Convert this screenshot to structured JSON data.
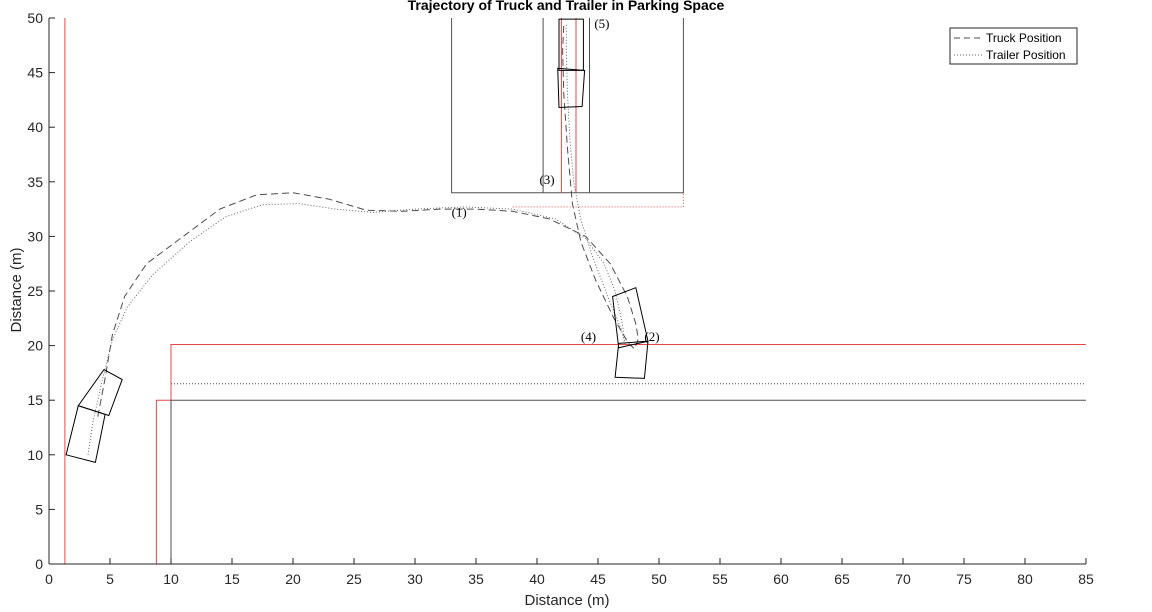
{
  "chart_data": {
    "type": "line",
    "title": "Trajectory of Truck and Trailer in Parking Space",
    "xlabel": "Distance (m)",
    "ylabel": "Distance (m)",
    "xlim": [
      0,
      85
    ],
    "ylim": [
      0,
      50
    ],
    "xticks": [
      0,
      5,
      10,
      15,
      20,
      25,
      30,
      35,
      40,
      45,
      50,
      55,
      60,
      65,
      70,
      75,
      80,
      85
    ],
    "yticks": [
      0,
      5,
      10,
      15,
      20,
      25,
      30,
      35,
      40,
      45,
      50
    ],
    "grid": false,
    "legend_position": "top-right",
    "colors": {
      "axis": "#262626",
      "boundary_red": "#e8474a",
      "boundary_gray": "#505050",
      "truck": "#4d4d4d",
      "trailer": "#666666",
      "vehicle": "#000000"
    },
    "series": [
      {
        "name": "Truck Position",
        "style": "dashed",
        "points": [
          [
            4,
            13.5
          ],
          [
            4.6,
            17
          ],
          [
            5.2,
            21
          ],
          [
            6.2,
            24.5
          ],
          [
            8,
            27.5
          ],
          [
            11,
            30
          ],
          [
            14,
            32.5
          ],
          [
            17,
            33.8
          ],
          [
            20,
            34
          ],
          [
            23,
            33.4
          ],
          [
            26,
            32.4
          ],
          [
            29,
            32.3
          ],
          [
            32,
            32.5
          ],
          [
            35,
            32.5
          ],
          [
            38,
            32.3
          ],
          [
            41,
            31.6
          ],
          [
            44,
            30
          ],
          [
            46,
            27.5
          ],
          [
            47.4,
            24.5
          ],
          [
            48.1,
            22
          ],
          [
            48.3,
            20.6
          ],
          [
            48,
            19.7
          ],
          [
            47.5,
            20.2
          ],
          [
            46.3,
            22.5
          ],
          [
            44.8,
            26
          ],
          [
            43.6,
            29.5
          ],
          [
            42.9,
            33
          ],
          [
            42.5,
            38
          ],
          [
            42.2,
            43
          ],
          [
            42.1,
            47
          ],
          [
            42.2,
            49.5
          ]
        ]
      },
      {
        "name": "Trailer Position",
        "style": "dotted",
        "points": [
          [
            3.2,
            10
          ],
          [
            3.6,
            13
          ],
          [
            4.4,
            17
          ],
          [
            5.2,
            20.5
          ],
          [
            6.4,
            23.5
          ],
          [
            8.5,
            26.5
          ],
          [
            11.5,
            29.5
          ],
          [
            14.5,
            31.8
          ],
          [
            17.5,
            32.9
          ],
          [
            20.5,
            33
          ],
          [
            23.5,
            32.5
          ],
          [
            26.5,
            32.2
          ],
          [
            30,
            32.5
          ],
          [
            34,
            32.7
          ],
          [
            38,
            32.5
          ],
          [
            41.5,
            31.6
          ],
          [
            44,
            29.8
          ],
          [
            45.5,
            27.5
          ],
          [
            46.4,
            25
          ],
          [
            47,
            22
          ],
          [
            47.2,
            20.2
          ],
          [
            46.9,
            21.5
          ],
          [
            45.8,
            24.5
          ],
          [
            44.6,
            28
          ],
          [
            43.6,
            31.5
          ],
          [
            43,
            35
          ],
          [
            42.7,
            39
          ],
          [
            42.5,
            43
          ],
          [
            42.4,
            47
          ],
          [
            42.4,
            49.5
          ]
        ]
      }
    ],
    "boundaries": [
      {
        "style": "solid-red",
        "points": [
          [
            1.3,
            0
          ],
          [
            1.3,
            50
          ]
        ]
      },
      {
        "style": "solid-red",
        "points": [
          [
            8.8,
            0
          ],
          [
            8.8,
            15
          ],
          [
            10,
            15
          ]
        ]
      },
      {
        "style": "solid-red",
        "points": [
          [
            10,
            15
          ],
          [
            10,
            20.1
          ],
          [
            85,
            20.1
          ]
        ]
      },
      {
        "style": "solid-gray",
        "points": [
          [
            10,
            0
          ],
          [
            10,
            15
          ],
          [
            85,
            15
          ]
        ]
      },
      {
        "style": "dotted-gray",
        "points": [
          [
            10,
            16.5
          ],
          [
            85,
            16.5
          ]
        ]
      },
      {
        "style": "solid-gray",
        "points": [
          [
            33,
            50
          ],
          [
            33,
            34
          ],
          [
            52,
            34
          ],
          [
            52,
            50
          ]
        ]
      },
      {
        "style": "solid-gray",
        "points": [
          [
            40.5,
            50
          ],
          [
            40.5,
            34
          ]
        ]
      },
      {
        "style": "solid-gray",
        "points": [
          [
            44.3,
            50
          ],
          [
            44.3,
            34
          ]
        ]
      },
      {
        "style": "dotted-red",
        "points": [
          [
            38,
            32.7
          ],
          [
            52,
            32.7
          ],
          [
            52,
            34
          ]
        ]
      },
      {
        "style": "solid-red",
        "points": [
          [
            42,
            50
          ],
          [
            42,
            34
          ]
        ]
      },
      {
        "style": "solid-red",
        "points": [
          [
            43.2,
            50
          ],
          [
            43.2,
            34
          ]
        ]
      }
    ],
    "vehicles": [
      [
        [
          4.5,
          17.8
        ],
        [
          6.0,
          16.9
        ],
        [
          4.9,
          13.6
        ],
        [
          2.4,
          14.5
        ]
      ],
      [
        [
          2.4,
          14.5
        ],
        [
          4.6,
          13.7
        ],
        [
          3.8,
          9.3
        ],
        [
          1.4,
          10.0
        ]
      ],
      [
        [
          46.2,
          24.5
        ],
        [
          48.1,
          25.3
        ],
        [
          49.1,
          20.4
        ],
        [
          46.7,
          19.8
        ]
      ],
      [
        [
          46.7,
          20.2
        ],
        [
          49.1,
          20.4
        ],
        [
          48.8,
          17.0
        ],
        [
          46.4,
          17.1
        ]
      ],
      [
        [
          41.8,
          49.9
        ],
        [
          43.8,
          49.9
        ],
        [
          43.8,
          45.2
        ],
        [
          41.8,
          45.2
        ]
      ],
      [
        [
          41.7,
          45.4
        ],
        [
          43.9,
          45.2
        ],
        [
          43.7,
          41.9
        ],
        [
          41.8,
          41.8
        ]
      ]
    ],
    "annotations": [
      {
        "text": "(1)",
        "x": 33,
        "y": 31.8
      },
      {
        "text": "(2)",
        "x": 48.8,
        "y": 20.4
      },
      {
        "text": "(3)",
        "x": 40.2,
        "y": 34.8
      },
      {
        "text": "(4)",
        "x": 43.6,
        "y": 20.4
      },
      {
        "text": "(5)",
        "x": 44.7,
        "y": 49.1
      }
    ]
  }
}
